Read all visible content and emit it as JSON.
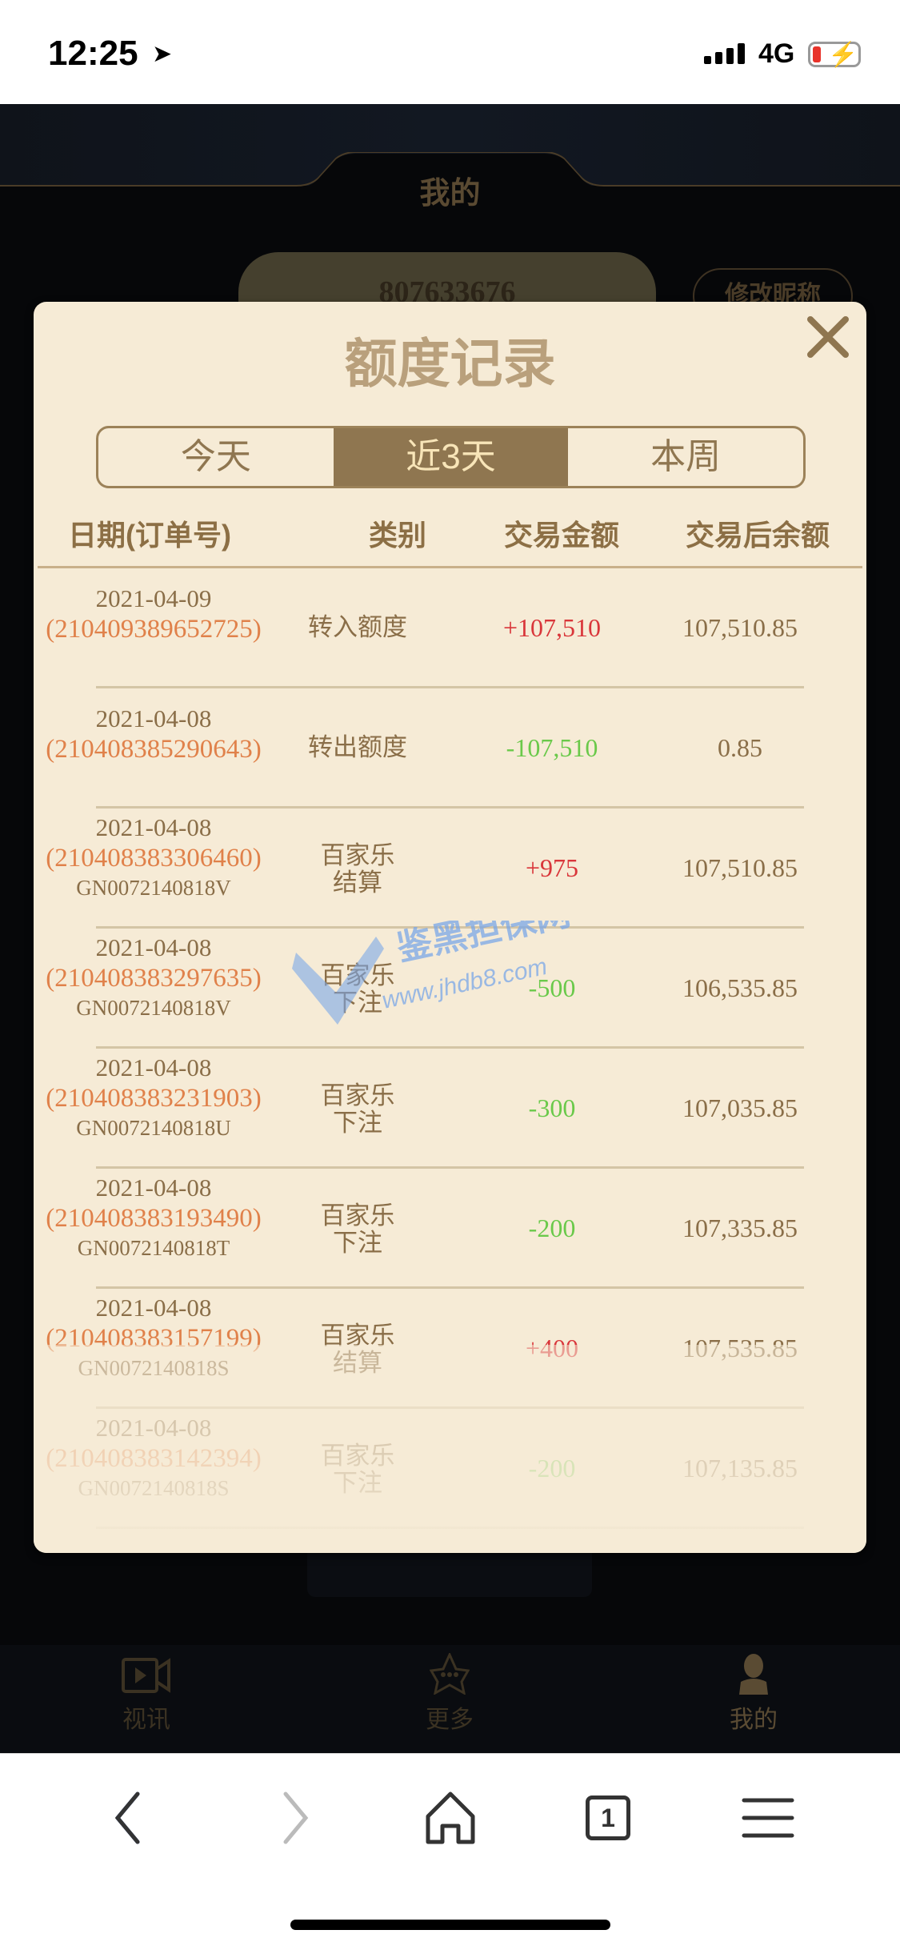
{
  "status_bar": {
    "time": "12:25",
    "network": "4G",
    "battery_level": 0.15
  },
  "header": {
    "title": "我的"
  },
  "account": {
    "id": "807633676",
    "edit_nickname_label": "修改昵称"
  },
  "modal": {
    "title": "额度记录",
    "tabs": [
      {
        "label": "今天"
      },
      {
        "label": "近3天",
        "active": true
      },
      {
        "label": "本周"
      }
    ],
    "columns": [
      "日期(订单号)",
      "类别",
      "交易金额",
      "交易后余额"
    ],
    "rows": [
      {
        "date": "2021-04-09",
        "order": "(210409389652725)",
        "game": "",
        "type": "转入额度",
        "type2": "",
        "amount": "+107,510",
        "sign": "pos",
        "balance": "107,510.85"
      },
      {
        "date": "2021-04-08",
        "order": "(210408385290643)",
        "game": "",
        "type": "转出额度",
        "type2": "",
        "amount": "-107,510",
        "sign": "neg",
        "balance": "0.85"
      },
      {
        "date": "2021-04-08",
        "order": "(210408383306460)",
        "game": "GN0072140818V",
        "type": "百家乐",
        "type2": "结算",
        "amount": "+975",
        "sign": "pos",
        "balance": "107,510.85"
      },
      {
        "date": "2021-04-08",
        "order": "(210408383297635)",
        "game": "GN0072140818V",
        "type": "百家乐",
        "type2": "下注",
        "amount": "-500",
        "sign": "neg",
        "balance": "106,535.85"
      },
      {
        "date": "2021-04-08",
        "order": "(210408383231903)",
        "game": "GN0072140818U",
        "type": "百家乐",
        "type2": "下注",
        "amount": "-300",
        "sign": "neg",
        "balance": "107,035.85"
      },
      {
        "date": "2021-04-08",
        "order": "(210408383193490)",
        "game": "GN0072140818T",
        "type": "百家乐",
        "type2": "下注",
        "amount": "-200",
        "sign": "neg",
        "balance": "107,335.85"
      },
      {
        "date": "2021-04-08",
        "order": "(210408383157199)",
        "game": "GN0072140818S",
        "type": "百家乐",
        "type2": "结算",
        "amount": "+400",
        "sign": "pos",
        "balance": "107,535.85"
      },
      {
        "date": "2021-04-08",
        "order": "(210408383142394)",
        "game": "GN0072140818S",
        "type": "百家乐",
        "type2": "下注",
        "amount": "-200",
        "sign": "neg",
        "balance": "107,135.85"
      }
    ]
  },
  "watermark": {
    "text": "鉴黑担保网",
    "url": "www.jhdb8.com"
  },
  "tab_bar": [
    {
      "label": "视讯",
      "icon": "video-icon"
    },
    {
      "label": "更多",
      "icon": "star-more-icon"
    },
    {
      "label": "我的",
      "icon": "user-icon",
      "active": true
    }
  ],
  "safari": {
    "tab_count": "1"
  },
  "colors": {
    "accent": "#8f7650",
    "positive": "#d9363a",
    "negative": "#6ac94a",
    "order": "#e0814a",
    "modal_bg": "#f6ebd6"
  }
}
